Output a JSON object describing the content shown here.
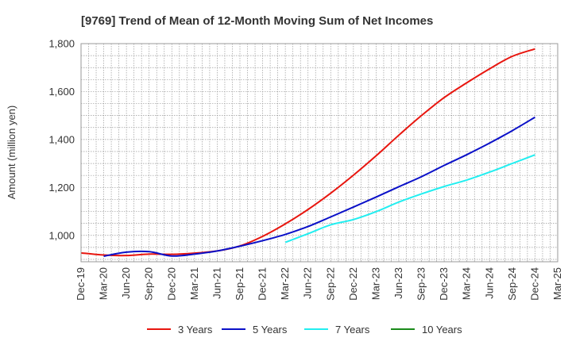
{
  "chart_data": {
    "type": "line",
    "title": "[9769]  Trend of Mean of 12-Month Moving Sum of Net Incomes",
    "xlabel": "",
    "ylabel": "Amount (million yen)",
    "ylim": [
      890,
      1800
    ],
    "yticks": [
      1000,
      1200,
      1400,
      1600,
      1800
    ],
    "ytick_labels": [
      "1,000",
      "1,200",
      "1,400",
      "1,600",
      "1,800"
    ],
    "categories": [
      "Dec-19",
      "Mar-20",
      "Jun-20",
      "Sep-20",
      "Dec-20",
      "Mar-21",
      "Jun-21",
      "Sep-21",
      "Dec-21",
      "Mar-22",
      "Jun-22",
      "Sep-22",
      "Dec-22",
      "Mar-23",
      "Jun-23",
      "Sep-23",
      "Dec-23",
      "Mar-24",
      "Jun-24",
      "Sep-24",
      "Dec-24",
      "Mar-25"
    ],
    "grid": true,
    "legend_position": "bottom",
    "series": [
      {
        "name": "3 Years",
        "color": "#e8160f",
        "values": [
          927,
          918,
          916,
          922,
          921,
          926,
          935,
          956,
          996,
          1048,
          1108,
          1176,
          1251,
          1332,
          1418,
          1500,
          1575,
          1637,
          1695,
          1747,
          1778,
          null
        ]
      },
      {
        "name": "5 Years",
        "color": "#0a10c8",
        "values": [
          null,
          913,
          930,
          932,
          914,
          922,
          935,
          955,
          978,
          1004,
          1037,
          1077,
          1118,
          1160,
          1203,
          1245,
          1292,
          1337,
          1385,
          1437,
          1493,
          null
        ]
      },
      {
        "name": "7 Years",
        "color": "#22eef0",
        "values": [
          null,
          null,
          null,
          null,
          null,
          null,
          null,
          null,
          null,
          971,
          1007,
          1044,
          1066,
          1099,
          1139,
          1173,
          1204,
          1231,
          1264,
          1300,
          1336,
          null
        ]
      },
      {
        "name": "10 Years",
        "color": "#1a8a1a",
        "values": [
          null,
          null,
          null,
          null,
          null,
          null,
          null,
          null,
          null,
          null,
          null,
          null,
          null,
          null,
          null,
          null,
          null,
          null,
          null,
          null,
          null,
          null
        ]
      }
    ]
  }
}
